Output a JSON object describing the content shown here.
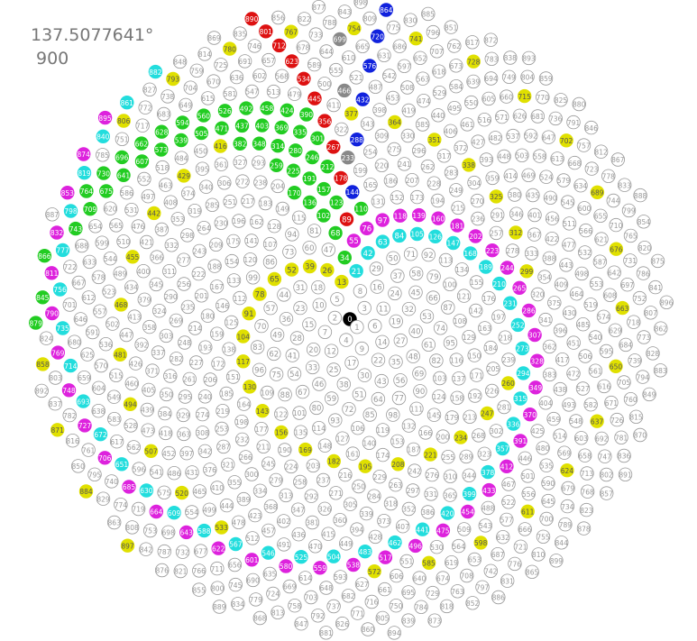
{
  "angle_label": "137.5077641°",
  "count_label": "900",
  "diagram": {
    "node_count": 900,
    "angle_degrees": 137.5077641,
    "default_fill": "#ffffff",
    "default_stroke": "#999999",
    "default_text_color": "#999999",
    "highlight_groups": [
      {
        "color": "#000000",
        "text": "#ffffff",
        "indices": [
          0
        ]
      },
      {
        "color": "#e0e000",
        "text": "#555555",
        "indices": [
          13,
          26,
          39,
          52,
          65,
          78,
          91,
          104,
          117,
          130,
          143,
          156,
          169,
          182,
          195,
          208,
          221,
          234,
          247,
          260,
          273,
          286,
          299,
          312,
          325,
          338,
          351,
          364,
          377,
          390,
          403,
          416,
          429,
          442,
          455,
          468,
          481,
          494,
          507,
          520,
          533,
          546,
          559,
          572,
          585,
          598,
          611,
          624,
          637,
          650,
          663,
          676,
          689,
          702,
          715,
          728,
          741,
          754,
          767,
          780,
          793,
          806,
          819,
          832,
          845,
          858,
          871,
          884,
          897
        ]
      },
      {
        "color": "#22cc22",
        "text": "#ffffff",
        "indices": [
          34,
          55,
          68,
          89,
          102,
          110,
          123,
          136,
          144,
          157,
          170,
          178,
          191,
          212,
          225,
          246,
          259,
          267,
          280,
          301,
          314,
          335,
          348,
          369,
          382,
          390,
          403,
          424,
          437,
          458,
          471,
          492,
          505,
          526,
          539,
          560,
          573,
          594,
          607,
          628,
          641,
          662,
          675,
          696,
          709,
          730,
          743,
          764,
          777,
          798,
          811,
          832,
          845,
          866,
          879
        ]
      },
      {
        "color": "#22dddd",
        "text": "#ffffff",
        "indices": [
          21,
          42,
          63,
          84,
          105,
          126,
          147,
          168,
          189,
          210,
          231,
          252,
          273,
          294,
          315,
          336,
          357,
          378,
          399,
          420,
          441,
          462,
          483,
          504,
          525,
          546,
          567,
          588,
          609,
          630,
          651,
          672,
          693,
          714,
          735,
          756,
          777,
          798,
          819,
          840,
          861,
          882
        ]
      },
      {
        "color": "#dd22dd",
        "text": "#ffffff",
        "indices": [
          55,
          76,
          97,
          118,
          139,
          160,
          181,
          202,
          223,
          244,
          265,
          286,
          307,
          328,
          349,
          370,
          391,
          412,
          433,
          454,
          475,
          496,
          517,
          538,
          559,
          580,
          601,
          622,
          643,
          664,
          685,
          706,
          727,
          748,
          769,
          790,
          811,
          832,
          853,
          874,
          895
        ]
      },
      {
        "color": "#1122dd",
        "text": "#ffffff",
        "indices": [
          144,
          288,
          432,
          576,
          720,
          864
        ]
      },
      {
        "color": "#dd1111",
        "text": "#ffffff",
        "indices": [
          89,
          178,
          267,
          356,
          445,
          534,
          623,
          712,
          801,
          890
        ]
      },
      {
        "color": "#888888",
        "text": "#ffffff",
        "indices": [
          233,
          466,
          699
        ]
      }
    ]
  }
}
